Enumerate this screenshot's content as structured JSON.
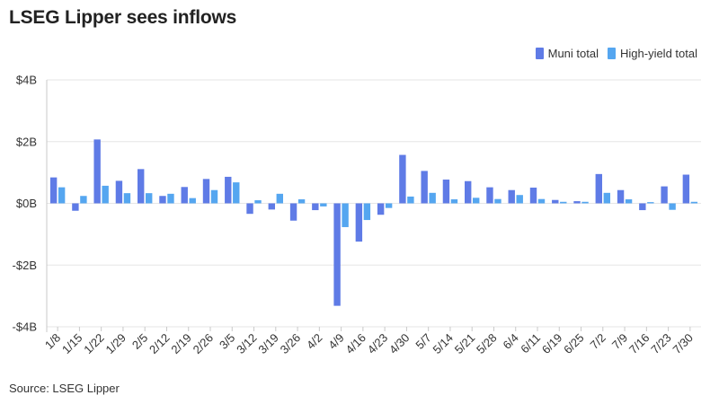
{
  "title": "LSEG Lipper sees inflows",
  "source": "Source: LSEG Lipper",
  "colors": {
    "muni": "#5f7be6",
    "highyield": "#55a6f0",
    "grid": "#e6e6e6",
    "axis": "#c8c8c8"
  },
  "chart_data": {
    "type": "bar",
    "ylim": [
      -4,
      4
    ],
    "yticks": [
      -4,
      -2,
      0,
      2,
      4
    ],
    "ytick_labels": [
      "-$4B",
      "-$2B",
      "$0B",
      "$2B",
      "$4B"
    ],
    "legend_position": "top-right",
    "grid": true,
    "categories": [
      "1/8",
      "1/15",
      "1/22",
      "1/29",
      "2/5",
      "2/12",
      "2/19",
      "2/26",
      "3/5",
      "3/12",
      "3/19",
      "3/26",
      "4/2",
      "4/9",
      "4/16",
      "4/23",
      "4/30",
      "5/7",
      "5/14",
      "5/21",
      "5/28",
      "6/4",
      "6/11",
      "6/19",
      "6/25",
      "7/2",
      "7/9",
      "7/16",
      "7/23",
      "7/30"
    ],
    "series": [
      {
        "name": "Muni total",
        "values": [
          0.84,
          -0.24,
          2.07,
          0.73,
          1.11,
          0.24,
          0.53,
          0.79,
          0.86,
          -0.34,
          -0.2,
          -0.56,
          -0.22,
          -3.32,
          -1.24,
          -0.37,
          1.57,
          1.05,
          0.77,
          0.72,
          0.52,
          0.43,
          0.51,
          0.11,
          0.07,
          0.95,
          0.43,
          -0.22,
          0.55,
          0.93
        ]
      },
      {
        "name": "High-yield total",
        "values": [
          0.52,
          0.24,
          0.57,
          0.33,
          0.33,
          0.31,
          0.17,
          0.43,
          0.68,
          0.1,
          0.31,
          0.13,
          -0.1,
          -0.77,
          -0.54,
          -0.15,
          0.22,
          0.34,
          0.13,
          0.18,
          0.14,
          0.27,
          0.14,
          0.05,
          0.05,
          0.34,
          0.13,
          0.04,
          -0.21,
          0.05
        ]
      }
    ]
  }
}
